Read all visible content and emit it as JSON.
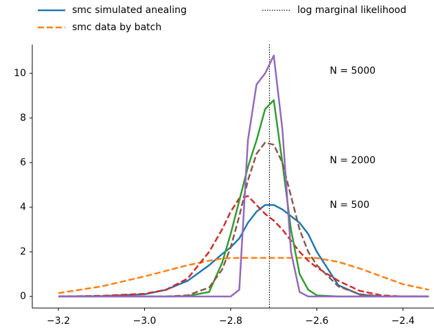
{
  "chart_data": {
    "type": "line",
    "x": [
      -3.2,
      -3.1,
      -3.0,
      -2.95,
      -2.9,
      -2.85,
      -2.82,
      -2.8,
      -2.78,
      -2.76,
      -2.74,
      -2.72,
      -2.7,
      -2.68,
      -2.66,
      -2.64,
      -2.62,
      -2.6,
      -2.55,
      -2.5,
      -2.45,
      -2.4,
      -2.34
    ],
    "series": [
      {
        "name": "smc simulated anealing",
        "color": "#1f77b4",
        "linestyle": "solid",
        "values": [
          0,
          0.02,
          0.1,
          0.3,
          0.7,
          1.4,
          1.9,
          2.2,
          2.6,
          3.3,
          3.8,
          4.1,
          4.1,
          3.9,
          3.6,
          3.3,
          2.8,
          2.0,
          0.5,
          0.08,
          0,
          0,
          0
        ]
      },
      {
        "name": "smc data by batch",
        "color": "#ff7f0e",
        "linestyle": "dashed",
        "values": [
          0.15,
          0.45,
          0.9,
          1.15,
          1.4,
          1.6,
          1.7,
          1.72,
          1.73,
          1.73,
          1.73,
          1.73,
          1.73,
          1.73,
          1.73,
          1.73,
          1.72,
          1.72,
          1.55,
          1.25,
          0.9,
          0.55,
          0.3
        ]
      },
      {
        "color": "#d62728",
        "linestyle": "dashed",
        "values": [
          0,
          0.03,
          0.12,
          0.3,
          0.8,
          2.0,
          3.0,
          3.8,
          4.4,
          4.5,
          4.1,
          3.7,
          3.4,
          3.0,
          2.5,
          2.0,
          1.6,
          1.3,
          0.7,
          0.25,
          0.05,
          0,
          0
        ]
      },
      {
        "color": "#2ca02c",
        "linestyle": "solid",
        "values": [
          0,
          0,
          0,
          0,
          0.02,
          0.2,
          1.5,
          2.8,
          4.3,
          5.8,
          7.0,
          8.4,
          8.8,
          6.0,
          3.0,
          1.0,
          0.3,
          0.05,
          0,
          0,
          0,
          0,
          0
        ]
      },
      {
        "color": "#8c564b",
        "linestyle": "dashed",
        "values": [
          0,
          0,
          0,
          0,
          0.05,
          0.4,
          1.2,
          2.2,
          3.6,
          5.2,
          6.4,
          6.9,
          6.8,
          6.0,
          4.5,
          3.0,
          2.0,
          1.4,
          0.45,
          0.1,
          0,
          0,
          0
        ]
      },
      {
        "color": "#9467bd",
        "linestyle": "solid",
        "values": [
          0,
          0,
          0,
          0,
          0,
          0,
          0,
          0,
          0.3,
          7.0,
          9.5,
          10.0,
          10.8,
          7.5,
          2.0,
          0.2,
          0,
          0,
          0,
          0,
          0,
          0,
          0
        ]
      }
    ],
    "vline": {
      "x": -2.71,
      "label": "log marginal likelihood",
      "color": "#000000"
    },
    "annotations": [
      {
        "text": "N = 5000",
        "x": -2.57,
        "y": 10.1
      },
      {
        "text": "N = 2000",
        "x": -2.57,
        "y": 6.1
      },
      {
        "text": "N = 500",
        "x": -2.57,
        "y": 4.1
      }
    ],
    "xlim": [
      -3.2606,
      -2.328
    ],
    "ylim": [
      -0.52,
      11.29
    ],
    "xticks": [
      {
        "value": -3.2,
        "label": "−3.2"
      },
      {
        "value": -3.0,
        "label": "−3.0"
      },
      {
        "value": -2.8,
        "label": "−2.8"
      },
      {
        "value": -2.6,
        "label": "−2.6"
      },
      {
        "value": -2.4,
        "label": "−2.4"
      }
    ],
    "yticks": [
      0,
      2,
      4,
      6,
      8,
      10
    ]
  }
}
